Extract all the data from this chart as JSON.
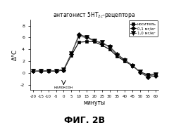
{
  "title": "антагонист 5НТ2c-рецептора",
  "xlabel": "минуты",
  "ylabel": "°C",
  "fig_label": "ФИГ. 2В",
  "naloxon_label": "налоксон",
  "legend": [
    "носитель",
    "0,1 мг/кг",
    "1,0 мг/кг"
  ],
  "xlim": [
    -22,
    62
  ],
  "ylim": [
    -2.8,
    9
  ],
  "xticks": [
    -20,
    -15,
    -10,
    -5,
    0,
    5,
    10,
    15,
    20,
    25,
    30,
    35,
    40,
    45,
    50,
    55,
    60
  ],
  "yticks": [
    -2,
    0,
    2,
    4,
    6,
    8
  ],
  "x": [
    -20,
    -15,
    -10,
    -5,
    0,
    5,
    10,
    15,
    20,
    25,
    30,
    35,
    40,
    45,
    50,
    55,
    60
  ],
  "vehicle": [
    0.3,
    0.3,
    0.3,
    0.3,
    0.5,
    3.0,
    5.2,
    5.3,
    5.3,
    4.7,
    4.0,
    2.8,
    2.0,
    1.2,
    0.2,
    -0.3,
    -0.2
  ],
  "dose01": [
    0.3,
    0.3,
    0.4,
    0.3,
    0.5,
    3.2,
    6.5,
    6.1,
    5.5,
    5.0,
    4.5,
    3.2,
    2.2,
    1.3,
    0.1,
    -0.7,
    -0.5
  ],
  "dose10": [
    0.3,
    0.4,
    0.3,
    0.4,
    0.6,
    3.3,
    6.2,
    6.0,
    5.4,
    5.2,
    4.4,
    3.0,
    2.1,
    1.2,
    0.2,
    -0.5,
    -0.3
  ],
  "background_color": "#ffffff",
  "line_color_vehicle": "#000000",
  "line_color_dose01": "#333333",
  "line_color_dose10": "#555555",
  "marker_vehicle": "s",
  "marker_dose01": "D",
  "marker_dose10": "v"
}
